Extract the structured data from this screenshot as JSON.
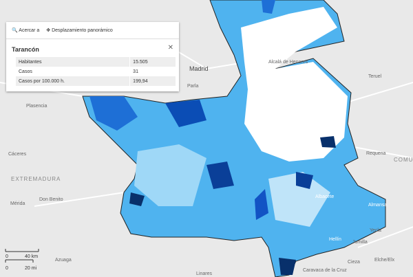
{
  "popup": {
    "toolbar": [
      "Acercar a",
      "Desplazamiento panorámico"
    ],
    "title": "Tarancón",
    "rows": [
      [
        "Habitantes",
        "15.505"
      ],
      [
        "Casos",
        "31"
      ],
      [
        "Casos por 100.000 h.",
        "199,94"
      ]
    ]
  },
  "places": [
    "Madrid",
    "Alcalá de Henares",
    "Parla",
    "Plasencia",
    "Cáceres",
    "EXTREMADURA",
    "Mérida",
    "Don Benito",
    "Azuaga",
    "Linares",
    "Teruel",
    "Requena",
    "COMU VALEN",
    "Albacete",
    "Almansa",
    "Hellín",
    "Jumilla",
    "Yecla",
    "Cieza",
    "Elche/Elx",
    "Caravaca de la Cruz"
  ],
  "scale": {
    "km": "40 km",
    "mi": "20 mi",
    "zero": "0"
  }
}
